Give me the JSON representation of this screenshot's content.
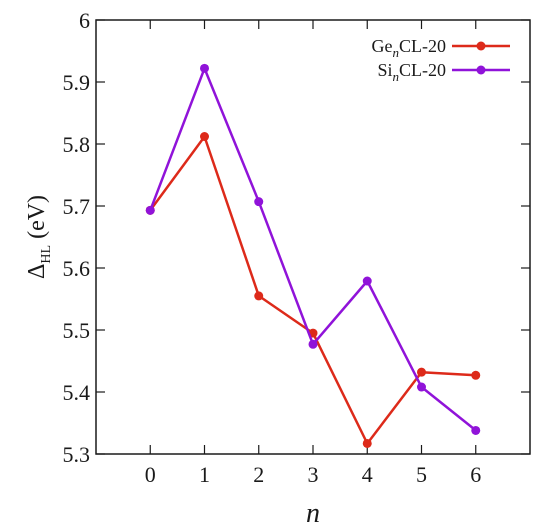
{
  "chart_data": {
    "type": "line",
    "x": [
      0,
      1,
      2,
      3,
      4,
      5,
      6
    ],
    "xticks": [
      "0",
      "1",
      "2",
      "3",
      "4",
      "5",
      "6"
    ],
    "yticks": [
      "5.3",
      "5.4",
      "5.5",
      "5.6",
      "5.7",
      "5.8",
      "5.9",
      "6"
    ],
    "xlim": [
      -1,
      7
    ],
    "ylim": [
      5.3,
      6.0
    ],
    "xlabel": "n",
    "ylabel": {
      "symbol": "Δ",
      "subscript": "HL",
      "unit": "(eV)"
    },
    "grid": false,
    "legend_position": "top-right",
    "series": [
      {
        "name": "GenCL-20",
        "label_parts": {
          "prefix": "Ge",
          "sub": "n",
          "suffix": "CL-20"
        },
        "color": "#dd2a1a",
        "values": [
          5.693,
          5.812,
          5.555,
          5.495,
          5.317,
          5.432,
          5.427
        ]
      },
      {
        "name": "SinCL-20",
        "label_parts": {
          "prefix": "Si",
          "sub": "n",
          "suffix": "CL-20"
        },
        "color": "#9013d9",
        "values": [
          5.693,
          5.922,
          5.707,
          5.477,
          5.579,
          5.408,
          5.338
        ]
      }
    ]
  }
}
